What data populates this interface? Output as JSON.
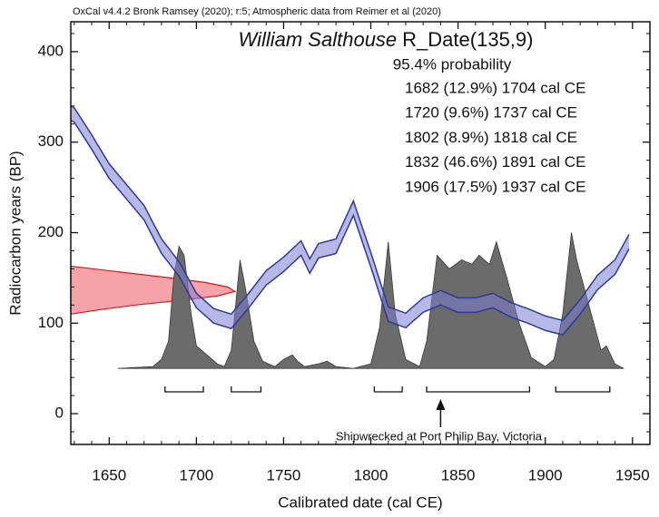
{
  "chart_data": {
    "type": "calibration",
    "credit": "OxCal v4.4.2 Bronk Ramsey (2020); r:5; Atmospheric data from Reimer et al (2020)",
    "title": {
      "name": "William Salthouse",
      "label": "R_Date(135,9)"
    },
    "subtitle": "95.4% probability",
    "x_label": "Calibrated date (cal CE)",
    "y_label": "Radiocarbon years (BP)",
    "xlim": [
      1628,
      1960
    ],
    "ylim": [
      -34,
      433
    ],
    "xticks": [
      1650,
      1700,
      1750,
      1800,
      1850,
      1900,
      1950
    ],
    "yticks": [
      0,
      100,
      200,
      300,
      400
    ],
    "ranges": [
      {
        "label": "1682 (12.9%) 1704 cal CE",
        "from": 1682,
        "to": 1704
      },
      {
        "label": "1720 (9.6%) 1737 cal CE",
        "from": 1720,
        "to": 1737
      },
      {
        "label": "1802 (8.9%) 1818 cal CE",
        "from": 1802,
        "to": 1818
      },
      {
        "label": "1832 (46.6%) 1891 cal CE",
        "from": 1832,
        "to": 1891
      },
      {
        "label": "1906 (17.5%) 1937 cal CE",
        "from": 1906,
        "to": 1937
      }
    ],
    "annotation": {
      "text": "Shipwrecked at Port Philip Bay, Victoria",
      "x": 1840
    },
    "calibration": {
      "color": "#7b7dcf",
      "edge": "#2e3a96",
      "x": [
        1628,
        1630,
        1640,
        1650,
        1660,
        1670,
        1680,
        1690,
        1700,
        1710,
        1720,
        1730,
        1740,
        1750,
        1760,
        1765,
        1770,
        1780,
        1790,
        1800,
        1810,
        1820,
        1830,
        1840,
        1850,
        1860,
        1870,
        1880,
        1890,
        1900,
        1910,
        1920,
        1930,
        1940,
        1948
      ],
      "upper": [
        340,
        338,
        308,
        276,
        253,
        230,
        193,
        168,
        133,
        116,
        110,
        133,
        158,
        173,
        191,
        171,
        188,
        193,
        235,
        178,
        118,
        111,
        128,
        136,
        128,
        128,
        133,
        123,
        116,
        108,
        103,
        126,
        153,
        170,
        198
      ],
      "lower": [
        324,
        322,
        292,
        260,
        237,
        214,
        177,
        152,
        117,
        100,
        94,
        117,
        142,
        157,
        175,
        155,
        172,
        177,
        219,
        162,
        102,
        95,
        112,
        120,
        112,
        112,
        117,
        107,
        100,
        92,
        87,
        110,
        137,
        154,
        182
      ]
    },
    "measurement": {
      "color": "#f5a3a8",
      "edge": "#d7191c",
      "x": [
        1628,
        1650,
        1685,
        1705,
        1718,
        1722,
        1712,
        1690,
        1665,
        1645,
        1628
      ],
      "y": [
        163,
        158,
        150,
        145,
        140,
        135,
        130,
        125,
        120,
        115,
        110
      ]
    },
    "posterior": {
      "color": "#6b6b6b",
      "edge": "#3a3a3a",
      "x": [
        1655,
        1675,
        1680,
        1684,
        1687,
        1690,
        1693,
        1697,
        1700,
        1706,
        1712,
        1716,
        1720,
        1725,
        1728,
        1733,
        1738,
        1745,
        1750,
        1755,
        1758,
        1762,
        1770,
        1775,
        1780,
        1790,
        1800,
        1805,
        1810,
        1814,
        1820,
        1828,
        1832,
        1838,
        1845,
        1852,
        1858,
        1862,
        1868,
        1872,
        1878,
        1885,
        1892,
        1900,
        1905,
        1910,
        1915,
        1918,
        1925,
        1932,
        1935,
        1940,
        1945
      ],
      "y": [
        50,
        52,
        60,
        80,
        150,
        185,
        175,
        110,
        75,
        65,
        55,
        52,
        70,
        170,
        140,
        80,
        58,
        52,
        60,
        65,
        58,
        52,
        55,
        58,
        52,
        50,
        55,
        95,
        190,
        110,
        60,
        52,
        80,
        175,
        160,
        170,
        165,
        175,
        165,
        190,
        150,
        100,
        62,
        52,
        60,
        110,
        200,
        170,
        120,
        70,
        75,
        55,
        50
      ]
    }
  }
}
